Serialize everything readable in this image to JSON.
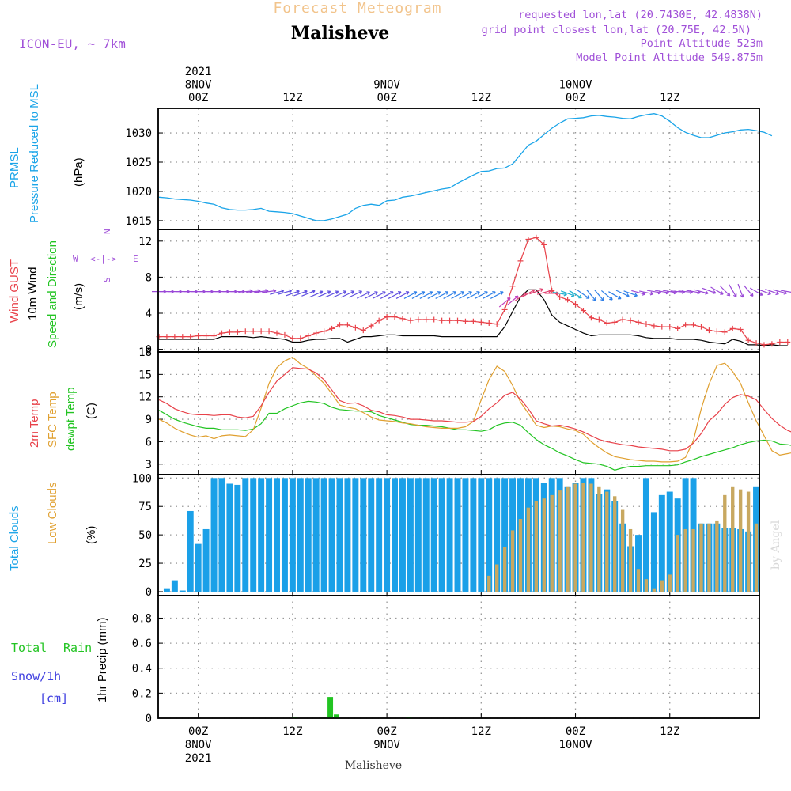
{
  "header": {
    "title": "Forecast Meteogram",
    "location": "Malisheve",
    "model": "ICON-EU, ~ 7km",
    "info": [
      "requested lon,lat (20.7430E, 42.4838N)",
      "grid point closest lon,lat (20.75E, 42.5N)",
      "Point Altitude 523m",
      "Model Point Altitude 549.875m"
    ],
    "watermark": "by Angel"
  },
  "time_axis": {
    "top_labels": [
      {
        "h": 0,
        "lines": [
          "2021",
          "8NOV",
          "00Z"
        ]
      },
      {
        "h": 12,
        "lines": [
          "12Z"
        ]
      },
      {
        "h": 24,
        "lines": [
          "9NOV",
          "00Z"
        ]
      },
      {
        "h": 36,
        "lines": [
          "12Z"
        ]
      },
      {
        "h": 48,
        "lines": [
          "10NOV",
          "00Z"
        ]
      },
      {
        "h": 60,
        "lines": [
          "12Z"
        ]
      }
    ],
    "bottom_labels": [
      {
        "h": 0,
        "lines": [
          "00Z",
          "8NOV",
          "2021"
        ]
      },
      {
        "h": 12,
        "lines": [
          "12Z"
        ]
      },
      {
        "h": 24,
        "lines": [
          "00Z",
          "9NOV"
        ]
      },
      {
        "h": 36,
        "lines": [
          "12Z"
        ]
      },
      {
        "h": 48,
        "lines": [
          "00Z",
          "10NOV"
        ]
      },
      {
        "h": 60,
        "lines": [
          "12Z"
        ]
      }
    ],
    "range_hours": [
      -5.1,
      71.4
    ],
    "step_hours": 1
  },
  "colors": {
    "pressure": "#1aa4e8",
    "gust": "#e8424a",
    "wind": "#000000",
    "temp2m": "#e8424a",
    "sfc": "#e0a030",
    "dewpt": "#22c422",
    "total_clouds": "#1aa0e8",
    "low_clouds": "#c8a860",
    "rain": "#22c422",
    "snow": "#4040e0",
    "purple": "#9a48d8"
  },
  "panels": {
    "pressure": {
      "labels": [
        "PRMSL",
        "Pressure Reduced to MSL"
      ],
      "unit": "(hPa)"
    },
    "wind": {
      "labels": [
        "Wind GUST",
        "10m Wind",
        "Speed and Direction"
      ],
      "unit": "(m/s)",
      "compass": {
        "n": "N",
        "s": "S",
        "w": "W",
        "e": "E",
        "arrow": "<-|->"
      }
    },
    "temp": {
      "labels": [
        "2m Temp",
        "SFC Temp",
        "dewpt Temp"
      ],
      "unit": "(C)"
    },
    "clouds": {
      "labels": [
        "Total Clouds",
        "Low Clouds"
      ],
      "unit": "(%)"
    },
    "precip": {
      "labels": [
        "Total",
        "Rain",
        "Snow/1h",
        "[cm]"
      ],
      "unit": "1hr Precip (mm)"
    }
  },
  "chart_data": [
    {
      "type": "line",
      "panel": "pressure",
      "ylabel": "(hPa)",
      "ylim": [
        1013.5,
        1034.2
      ],
      "yticks": [
        1015,
        1020,
        1025,
        1030
      ],
      "x_start_hour": -5,
      "series": [
        {
          "name": "PRMSL",
          "values": [
            1019.0,
            1018.9,
            1018.7,
            1018.6,
            1018.5,
            1018.3,
            1018.0,
            1017.8,
            1017.2,
            1016.9,
            1016.8,
            1016.8,
            1016.9,
            1017.1,
            1016.6,
            1016.5,
            1016.4,
            1016.2,
            1015.8,
            1015.4,
            1015.0,
            1015.0,
            1015.3,
            1015.7,
            1016.1,
            1017.1,
            1017.6,
            1017.8,
            1017.6,
            1018.4,
            1018.5,
            1019.0,
            1019.2,
            1019.5,
            1019.8,
            1020.1,
            1020.4,
            1020.6,
            1021.4,
            1022.1,
            1022.8,
            1023.4,
            1023.5,
            1023.9,
            1024.0,
            1024.7,
            1026.3,
            1027.9,
            1028.6,
            1029.7,
            1030.8,
            1031.7,
            1032.4,
            1032.5,
            1032.6,
            1032.9,
            1033.0,
            1032.8,
            1032.7,
            1032.5,
            1032.4,
            1032.8,
            1033.1,
            1033.3,
            1032.9,
            1032.0,
            1030.9,
            1030.1,
            1029.6,
            1029.2,
            1029.2,
            1029.6,
            1030.0,
            1030.2,
            1030.5,
            1030.6,
            1030.4,
            1030.1,
            1029.5
          ]
        }
      ]
    },
    {
      "type": "line",
      "panel": "wind",
      "ylabel": "(m/s)",
      "ylim": [
        -0.3,
        13.3
      ],
      "yticks": [
        0,
        4,
        8,
        12
      ],
      "x_start_hour": -5,
      "series": [
        {
          "name": "Wind GUST",
          "values": [
            1.4,
            1.4,
            1.4,
            1.4,
            1.4,
            1.5,
            1.5,
            1.5,
            1.8,
            1.9,
            1.9,
            2.0,
            2.0,
            2.0,
            2.0,
            1.8,
            1.6,
            1.2,
            1.2,
            1.5,
            1.8,
            2.0,
            2.3,
            2.7,
            2.7,
            2.4,
            2.1,
            2.6,
            3.2,
            3.6,
            3.6,
            3.4,
            3.2,
            3.3,
            3.3,
            3.3,
            3.2,
            3.2,
            3.2,
            3.1,
            3.1,
            3.0,
            2.9,
            2.8,
            4.4,
            7.0,
            9.8,
            12.2,
            12.4,
            11.6,
            6.5,
            5.8,
            5.5,
            5.0,
            4.3,
            3.5,
            3.3,
            2.9,
            3.0,
            3.3,
            3.2,
            3.0,
            2.8,
            2.6,
            2.5,
            2.5,
            2.3,
            2.7,
            2.7,
            2.5,
            2.1,
            2.0,
            1.9,
            2.3,
            2.2,
            1.0,
            0.7,
            0.5,
            0.6,
            0.8,
            0.8
          ]
        },
        {
          "name": "10m Wind",
          "values": [
            1.1,
            1.1,
            1.1,
            1.1,
            1.1,
            1.1,
            1.1,
            1.1,
            1.4,
            1.4,
            1.4,
            1.4,
            1.3,
            1.4,
            1.3,
            1.2,
            1.1,
            0.8,
            0.8,
            1.0,
            1.1,
            1.1,
            1.2,
            1.2,
            0.8,
            1.1,
            1.4,
            1.4,
            1.5,
            1.6,
            1.6,
            1.5,
            1.5,
            1.5,
            1.5,
            1.5,
            1.4,
            1.4,
            1.4,
            1.4,
            1.4,
            1.4,
            1.4,
            1.4,
            2.5,
            4.2,
            5.8,
            6.6,
            6.6,
            5.5,
            3.8,
            3.0,
            2.6,
            2.2,
            1.8,
            1.5,
            1.6,
            1.6,
            1.6,
            1.6,
            1.6,
            1.5,
            1.3,
            1.2,
            1.2,
            1.2,
            1.1,
            1.1,
            1.1,
            1.0,
            0.8,
            0.7,
            0.6,
            1.1,
            0.9,
            0.5,
            0.5,
            0.4,
            0.5,
            0.4,
            0.4
          ]
        },
        {
          "name": "Speed and Direction",
          "values": [
            6.4,
            6.4,
            6.4,
            6.4,
            6.4,
            6.4,
            6.4,
            6.4,
            6.4,
            6.4,
            6.4,
            6.4,
            6.4,
            6.4,
            6.4,
            6.3,
            6.3,
            6.2,
            6.2,
            6.2,
            6.1,
            6.1,
            6.1,
            6.1,
            6.1,
            6.1,
            6.0,
            6.0,
            6.0,
            6.0,
            6.0,
            6.0,
            6.0,
            6.0,
            6.0,
            6.0,
            6.0,
            6.0,
            6.0,
            6.0,
            6.0,
            6.0,
            6.0,
            6.0,
            5.2,
            5.4,
            5.8,
            6.2,
            6.4,
            6.3,
            6.2,
            6.2,
            6.2,
            6.1,
            6.1,
            6.0,
            6.0,
            6.0,
            6.0,
            6.2,
            6.2,
            6.3,
            6.3,
            6.4,
            6.4,
            6.4,
            6.4,
            6.4,
            6.4,
            6.4,
            6.5,
            6.5,
            6.5,
            6.5,
            6.5,
            6.5,
            6.4,
            6.4,
            6.4,
            6.4,
            6.4
          ]
        }
      ],
      "wind_dir_deg": [
        270,
        270,
        270,
        270,
        270,
        270,
        270,
        270,
        270,
        270,
        270,
        265,
        265,
        262,
        262,
        255,
        255,
        250,
        250,
        248,
        246,
        246,
        246,
        245,
        245,
        245,
        244,
        243,
        243,
        242,
        242,
        242,
        242,
        242,
        242,
        242,
        242,
        242,
        242,
        242,
        242,
        242,
        242,
        242,
        230,
        230,
        235,
        240,
        250,
        255,
        270,
        280,
        290,
        300,
        305,
        320,
        320,
        310,
        300,
        295,
        290,
        285,
        282,
        280,
        280,
        280,
        275,
        275,
        280,
        285,
        290,
        300,
        315,
        330,
        340,
        320,
        300,
        290,
        290,
        285,
        280
      ]
    },
    {
      "type": "line",
      "panel": "temp",
      "ylabel": "(C)",
      "ylim": [
        1.6,
        18.0
      ],
      "yticks": [
        3,
        6,
        9,
        12,
        15,
        18
      ],
      "x_start_hour": -5,
      "series": [
        {
          "name": "2m Temp",
          "values": [
            11.6,
            11.1,
            10.4,
            10.0,
            9.7,
            9.6,
            9.6,
            9.5,
            9.6,
            9.6,
            9.3,
            9.2,
            9.4,
            10.8,
            12.6,
            14.1,
            15.0,
            15.9,
            15.8,
            15.7,
            15.2,
            14.3,
            12.9,
            11.5,
            11.1,
            11.2,
            10.8,
            10.2,
            10.0,
            9.6,
            9.5,
            9.3,
            9.0,
            9.0,
            8.9,
            8.8,
            8.8,
            8.7,
            8.6,
            8.6,
            8.7,
            9.4,
            10.4,
            11.2,
            12.2,
            12.6,
            11.7,
            10.4,
            8.8,
            8.4,
            8.1,
            8.2,
            8.0,
            7.7,
            7.3,
            6.8,
            6.3,
            6.0,
            5.8,
            5.6,
            5.5,
            5.3,
            5.2,
            5.1,
            5.0,
            4.8,
            4.8,
            5.0,
            5.8,
            7.1,
            8.8,
            9.7,
            11.0,
            11.9,
            12.3,
            12.1,
            11.6,
            10.3,
            9.1,
            8.2,
            7.5,
            7.1,
            6.8,
            6.6,
            6.8
          ]
        },
        {
          "name": "SFC Temp",
          "values": [
            9.0,
            8.5,
            7.8,
            7.3,
            6.9,
            6.6,
            6.8,
            6.4,
            6.8,
            6.9,
            6.8,
            6.7,
            7.6,
            10.5,
            13.8,
            15.9,
            16.8,
            17.3,
            16.4,
            15.8,
            14.8,
            13.8,
            12.4,
            10.9,
            10.6,
            10.4,
            9.9,
            9.3,
            8.9,
            8.8,
            8.7,
            8.5,
            8.4,
            8.2,
            8.0,
            7.9,
            7.8,
            7.8,
            7.8,
            8.0,
            8.7,
            11.6,
            14.3,
            16.1,
            15.4,
            13.5,
            11.3,
            9.8,
            8.2,
            7.9,
            8.1,
            8.0,
            7.7,
            7.5,
            7.0,
            6.0,
            5.2,
            4.5,
            4.0,
            3.8,
            3.6,
            3.5,
            3.4,
            3.4,
            3.3,
            3.3,
            3.4,
            3.9,
            6.1,
            10.4,
            13.7,
            16.2,
            16.5,
            15.4,
            13.8,
            11.2,
            8.8,
            6.8,
            4.8,
            4.2,
            4.4,
            4.6,
            4.3,
            4.6,
            4.8
          ]
        },
        {
          "name": "dewpt Temp",
          "values": [
            10.2,
            9.6,
            9.0,
            8.6,
            8.3,
            8.0,
            7.8,
            7.8,
            7.6,
            7.6,
            7.6,
            7.5,
            7.7,
            8.4,
            9.8,
            9.8,
            10.4,
            10.8,
            11.2,
            11.4,
            11.3,
            11.1,
            10.6,
            10.3,
            10.2,
            10.1,
            10.1,
            10.0,
            9.5,
            9.2,
            8.9,
            8.6,
            8.3,
            8.2,
            8.2,
            8.1,
            8.0,
            7.8,
            7.6,
            7.6,
            7.5,
            7.4,
            7.6,
            8.2,
            8.5,
            8.6,
            8.2,
            7.2,
            6.3,
            5.6,
            5.1,
            4.5,
            4.1,
            3.6,
            3.2,
            3.1,
            3.0,
            2.7,
            2.2,
            2.5,
            2.7,
            2.7,
            2.8,
            2.8,
            2.8,
            2.8,
            2.9,
            3.3,
            3.6,
            4.0,
            4.3,
            4.6,
            4.9,
            5.2,
            5.6,
            5.9,
            6.1,
            6.2,
            6.1,
            5.7,
            5.6,
            5.4,
            5.2,
            5.4,
            5.6
          ]
        }
      ]
    },
    {
      "type": "bar",
      "panel": "clouds",
      "ylabel": "(%)",
      "ylim": [
        -3.5,
        103
      ],
      "yticks": [
        0,
        25,
        50,
        75,
        100
      ],
      "x_start_hour": -4,
      "series": [
        {
          "name": "Total Clouds",
          "values": [
            3,
            10,
            1,
            71,
            42,
            55,
            100,
            100,
            95,
            94,
            100,
            100,
            100,
            100,
            100,
            100,
            100,
            100,
            100,
            100,
            100,
            100,
            100,
            100,
            100,
            100,
            100,
            100,
            100,
            100,
            100,
            100,
            100,
            100,
            100,
            100,
            100,
            100,
            100,
            100,
            100,
            100,
            100,
            100,
            100,
            100,
            100,
            100,
            96,
            100,
            100,
            92,
            96,
            100,
            100,
            86,
            90,
            80,
            60,
            40,
            50,
            100,
            70,
            85,
            88,
            82,
            100,
            100,
            60,
            60,
            60,
            56,
            56,
            55,
            53,
            92,
            90,
            65,
            55,
            100,
            63,
            100,
            100,
            90,
            100,
            100,
            100,
            57,
            37,
            100,
            96,
            100,
            100,
            100
          ]
        },
        {
          "name": "Low Clouds",
          "values": [
            0,
            0,
            0,
            0,
            0,
            0,
            0,
            0,
            0,
            0,
            0,
            0,
            0,
            0,
            0,
            0,
            0,
            0,
            0,
            0,
            0,
            0,
            0,
            0,
            0,
            0,
            0,
            0,
            0,
            0,
            0,
            0,
            0,
            0,
            0,
            0,
            0,
            0,
            0,
            0,
            0,
            14,
            24,
            39,
            54,
            64,
            74,
            80,
            82,
            85,
            89,
            92,
            95,
            96,
            95,
            92,
            88,
            84,
            72,
            55,
            20,
            11,
            3,
            10,
            15,
            50,
            55,
            55,
            60,
            60,
            62,
            85,
            92,
            90,
            88,
            60,
            23,
            4,
            3,
            3,
            25,
            26,
            8,
            5,
            15,
            30,
            28,
            30,
            32
          ]
        }
      ]
    },
    {
      "type": "bar",
      "panel": "precip",
      "ylabel": "1hr Precip (mm)",
      "ylim": [
        0,
        0.98
      ],
      "yticks": [
        0,
        0.2,
        0.4,
        0.6,
        0.8
      ],
      "bars": [
        {
          "h": 12.3,
          "value": 0.01
        },
        {
          "h": 16.8,
          "value": 0.17
        },
        {
          "h": 17.6,
          "value": 0.03
        },
        {
          "h": 26.8,
          "value": 0.01
        }
      ]
    }
  ]
}
